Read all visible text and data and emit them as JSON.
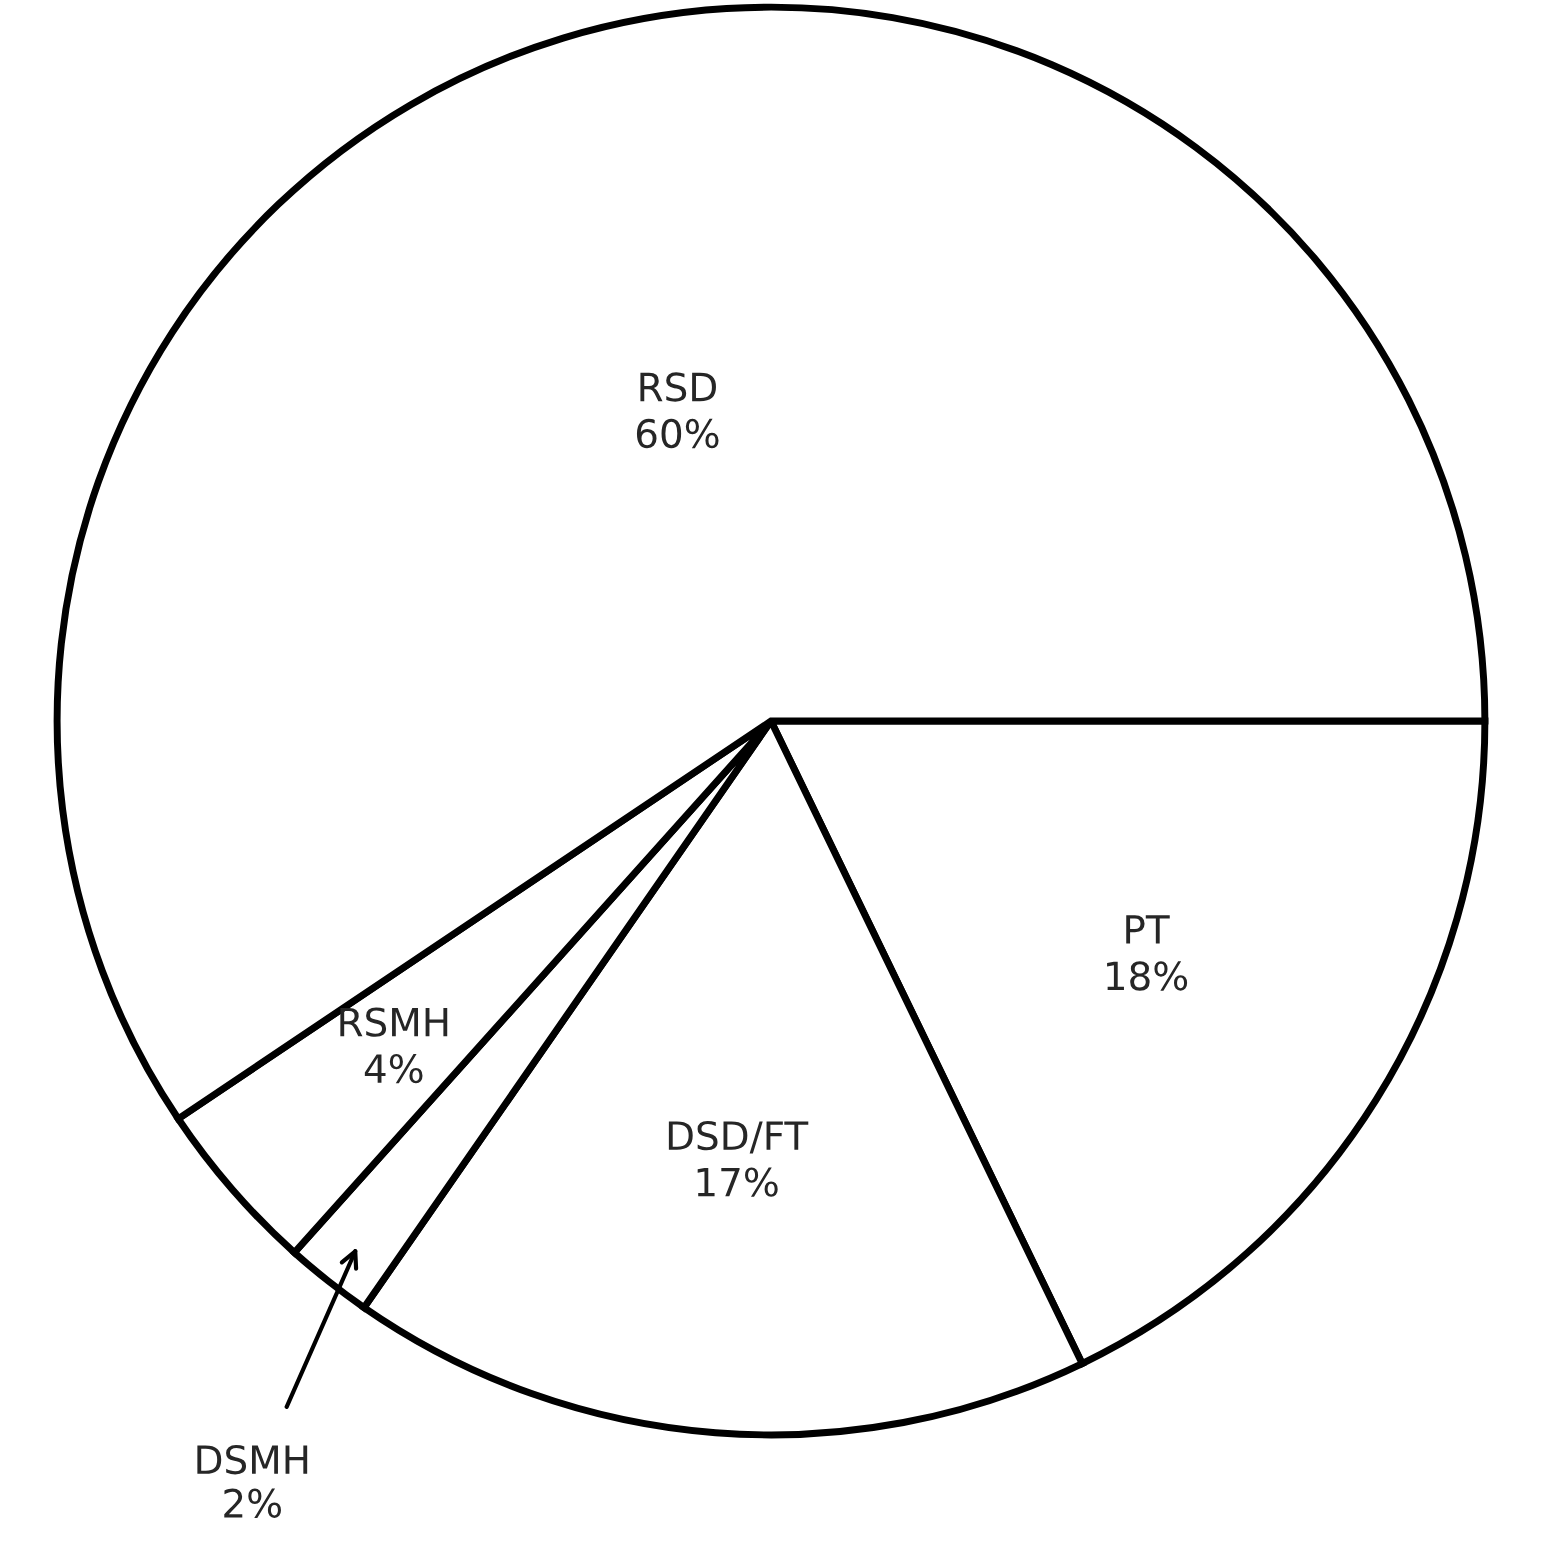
{
  "chart_data": {
    "type": "pie",
    "categories": [
      "PT",
      "DSD/FT",
      "DSMH",
      "RSMH",
      "RSD"
    ],
    "values": [
      18,
      17,
      2,
      4,
      60
    ],
    "value_labels": [
      "18%",
      "17%",
      "2%",
      "4%",
      "60%"
    ],
    "colors": [
      "#ffffff",
      "#ffffff",
      "#ffffff",
      "#ffffff",
      "#ffffff"
    ]
  }
}
